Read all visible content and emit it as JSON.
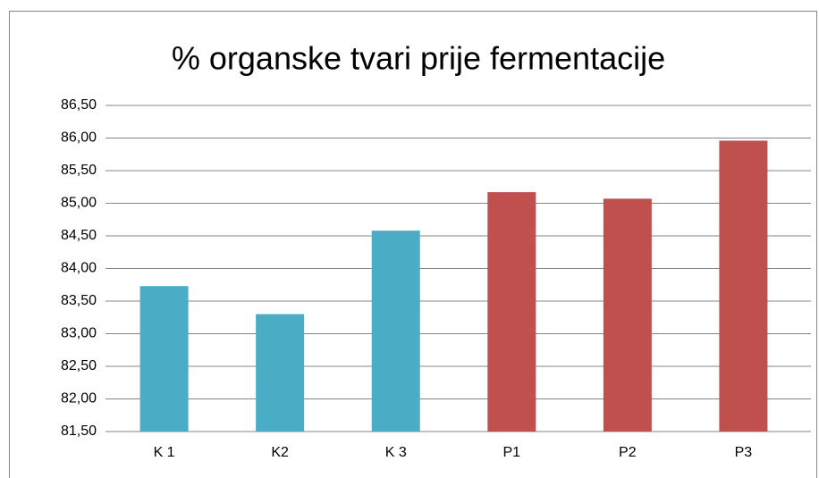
{
  "chart_data": {
    "type": "bar",
    "title": "% organske tvari prije fermentacije",
    "categories": [
      "K 1",
      "K2",
      "K 3",
      "P1",
      "P2",
      "P3"
    ],
    "values": [
      83.73,
      83.3,
      84.58,
      85.17,
      85.07,
      85.96
    ],
    "colors": [
      "#4bacc6",
      "#4bacc6",
      "#4bacc6",
      "#c0504d",
      "#c0504d",
      "#c0504d"
    ],
    "ylim": [
      81.5,
      86.5
    ],
    "yticks": [
      {
        "value": 81.5,
        "label": "81,50"
      },
      {
        "value": 82,
        "label": "82,00"
      },
      {
        "value": 82.5,
        "label": "82,50"
      },
      {
        "value": 83,
        "label": "83,00"
      },
      {
        "value": 83.5,
        "label": "83,50"
      },
      {
        "value": 84,
        "label": "84,00"
      },
      {
        "value": 84.5,
        "label": "84,50"
      },
      {
        "value": 85,
        "label": "85,00"
      },
      {
        "value": 85.5,
        "label": "85,50"
      },
      {
        "value": 86,
        "label": "86,00"
      },
      {
        "value": 86.5,
        "label": "86,50"
      }
    ],
    "grid": true
  }
}
